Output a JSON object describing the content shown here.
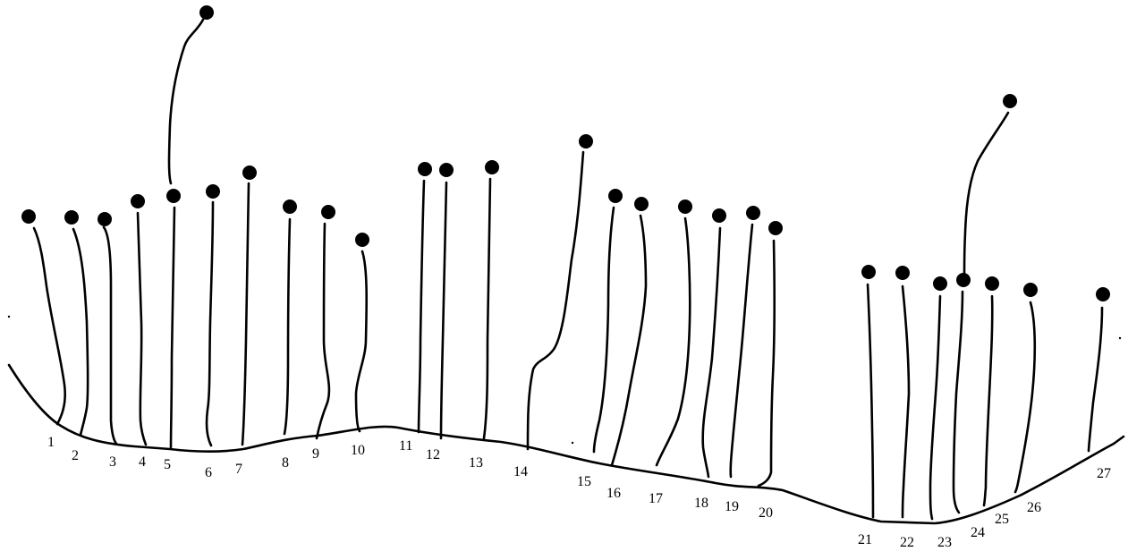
{
  "ink_color": "#000000",
  "background_color": "#ffffff",
  "node_count": 27,
  "labels": [
    "1",
    "2",
    "3",
    "4",
    "5",
    "6",
    "7",
    "8",
    "9",
    "10",
    "11",
    "12",
    "13",
    "14",
    "15",
    "16",
    "17",
    "18",
    "19",
    "20",
    "21",
    "22",
    "23",
    "24",
    "25",
    "26",
    "27"
  ]
}
